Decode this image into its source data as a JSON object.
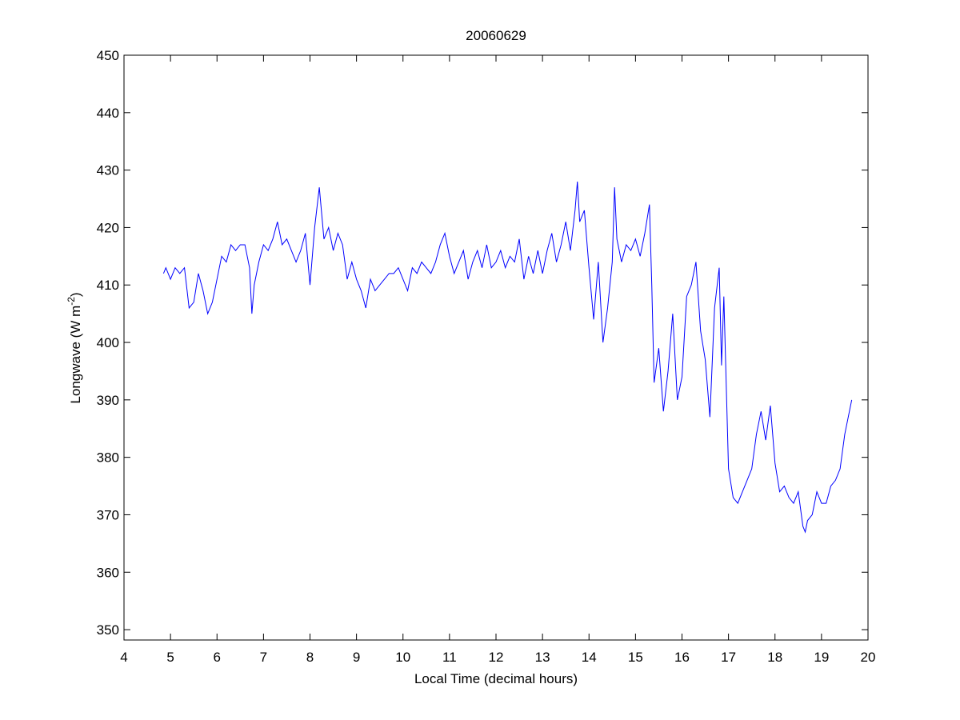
{
  "chart_data": {
    "type": "line",
    "title": "20060629",
    "xlabel": "Local Time (decimal hours)",
    "ylabel": [
      "Longwave (W m",
      "-2",
      ")"
    ],
    "xlim": [
      4,
      20
    ],
    "xticks": [
      4,
      5,
      6,
      7,
      8,
      9,
      10,
      11,
      12,
      13,
      14,
      15,
      16,
      17,
      18,
      19,
      20
    ],
    "ylim": [
      348.2,
      450
    ],
    "yticks": [
      350,
      360,
      370,
      380,
      390,
      400,
      410,
      420,
      430,
      440,
      450
    ],
    "grid": false,
    "x": [
      4.85,
      4.9,
      5.0,
      5.1,
      5.2,
      5.3,
      5.4,
      5.5,
      5.6,
      5.7,
      5.8,
      5.9,
      6.0,
      6.1,
      6.2,
      6.3,
      6.4,
      6.5,
      6.6,
      6.7,
      6.75,
      6.8,
      6.9,
      7.0,
      7.1,
      7.2,
      7.3,
      7.4,
      7.5,
      7.6,
      7.7,
      7.8,
      7.9,
      8.0,
      8.1,
      8.2,
      8.3,
      8.4,
      8.5,
      8.6,
      8.7,
      8.8,
      8.9,
      9.0,
      9.1,
      9.2,
      9.3,
      9.4,
      9.5,
      9.6,
      9.7,
      9.8,
      9.9,
      10.0,
      10.1,
      10.2,
      10.3,
      10.4,
      10.5,
      10.6,
      10.7,
      10.8,
      10.9,
      11.0,
      11.1,
      11.2,
      11.3,
      11.4,
      11.5,
      11.6,
      11.7,
      11.8,
      11.9,
      12.0,
      12.1,
      12.2,
      12.3,
      12.4,
      12.5,
      12.6,
      12.7,
      12.8,
      12.9,
      13.0,
      13.1,
      13.2,
      13.3,
      13.4,
      13.5,
      13.6,
      13.7,
      13.75,
      13.8,
      13.9,
      14.0,
      14.1,
      14.2,
      14.3,
      14.4,
      14.5,
      14.55,
      14.6,
      14.7,
      14.8,
      14.9,
      15.0,
      15.1,
      15.2,
      15.3,
      15.35,
      15.4,
      15.5,
      15.6,
      15.7,
      15.8,
      15.9,
      16.0,
      16.1,
      16.2,
      16.3,
      16.4,
      16.5,
      16.6,
      16.7,
      16.8,
      16.85,
      16.9,
      17.0,
      17.1,
      17.2,
      17.3,
      17.4,
      17.5,
      17.6,
      17.7,
      17.8,
      17.9,
      18.0,
      18.1,
      18.2,
      18.3,
      18.4,
      18.5,
      18.6,
      18.65,
      18.7,
      18.8,
      18.9,
      19.0,
      19.1,
      19.2,
      19.3,
      19.4,
      19.5,
      19.6,
      19.65
    ],
    "series": [
      {
        "color": "#0000ff",
        "values": [
          412,
          413,
          411,
          413,
          412,
          413,
          406,
          407,
          412,
          409,
          405,
          407,
          411,
          415,
          414,
          417,
          416,
          417,
          417,
          413,
          405,
          410,
          414,
          417,
          416,
          418,
          421,
          417,
          418,
          416,
          414,
          416,
          419,
          410,
          420,
          427,
          418,
          420,
          416,
          419,
          417,
          411,
          414,
          411,
          409,
          406,
          411,
          409,
          410,
          411,
          412,
          412,
          413,
          411,
          409,
          413,
          412,
          414,
          413,
          412,
          414,
          417,
          419,
          415,
          412,
          414,
          416,
          411,
          414,
          416,
          413,
          417,
          413,
          414,
          416,
          413,
          415,
          414,
          418,
          411,
          415,
          412,
          416,
          412,
          416,
          419,
          414,
          417,
          421,
          416,
          423,
          428,
          421,
          423,
          413,
          404,
          414,
          400,
          406,
          414,
          427,
          418,
          414,
          417,
          416,
          418,
          415,
          419,
          424,
          410,
          393,
          399,
          388,
          395,
          405,
          390,
          394,
          408,
          410,
          414,
          402,
          397,
          387,
          406,
          413,
          396,
          408,
          378,
          373,
          372,
          374,
          376,
          378,
          384,
          388,
          383,
          389,
          379,
          374,
          375,
          373,
          372,
          374,
          368,
          367,
          369,
          370,
          374,
          372,
          372,
          375,
          376,
          378,
          384,
          388,
          390
        ]
      }
    ]
  }
}
